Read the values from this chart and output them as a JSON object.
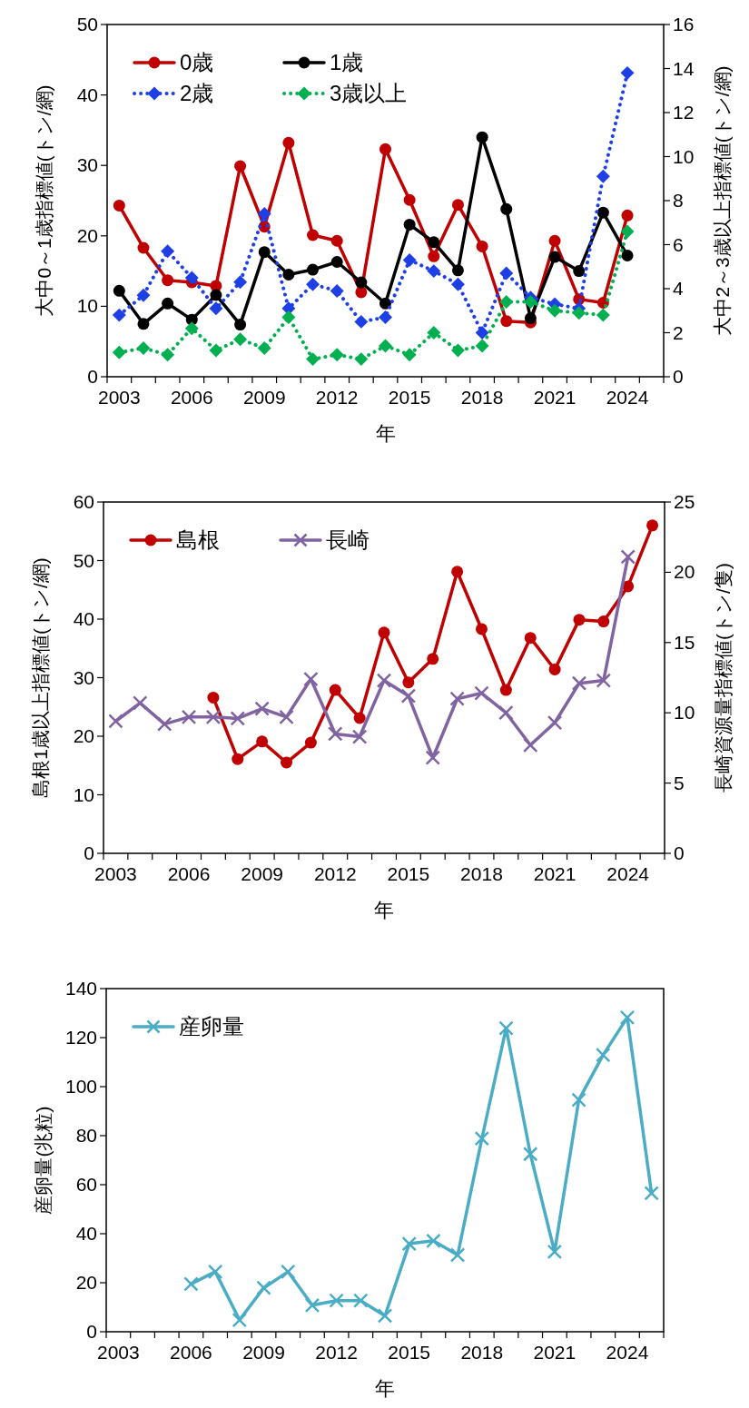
{
  "chart_data": [
    {
      "type": "line",
      "xlabel": "年",
      "ylabel": "大中0～1歳指標値(トン/網)",
      "y2label": "大中2～3歳以上指標値(トン/網)",
      "categories": [
        "2003",
        null,
        null,
        "2006",
        null,
        null,
        "2009",
        null,
        null,
        "2012",
        null,
        null,
        "2015",
        null,
        null,
        "2018",
        null,
        null,
        "2021",
        null,
        null,
        "2024",
        null
      ],
      "ylim": [
        0,
        50
      ],
      "yticks": [
        0,
        10,
        20,
        30,
        40,
        50
      ],
      "y2lim": [
        0,
        16
      ],
      "y2ticks": [
        0,
        2,
        4,
        6,
        8,
        10,
        12,
        14,
        16
      ],
      "legend": "top left",
      "series": [
        {
          "name": "0歳",
          "color": "#c00000",
          "marker": "circle",
          "line_style": "solid",
          "values": [
            24.3,
            18.3,
            13.7,
            13.4,
            12.9,
            29.9,
            21.3,
            33.2,
            20.1,
            19.3,
            12.0,
            32.3,
            25.1,
            17.1,
            24.4,
            18.5,
            7.9,
            7.7,
            19.3,
            11.0,
            10.5,
            22.9,
            null
          ]
        },
        {
          "name": "1歳",
          "color": "#000000",
          "marker": "circle",
          "line_style": "solid",
          "values": [
            12.2,
            7.5,
            10.4,
            8.1,
            11.6,
            7.4,
            17.7,
            14.5,
            15.2,
            16.3,
            13.4,
            10.4,
            21.6,
            19.1,
            15.1,
            34.0,
            23.8,
            8.3,
            17.0,
            15.0,
            23.3,
            17.2,
            null
          ]
        },
        {
          "name": "2歳",
          "color": "#1f3fe6",
          "marker": "diamond",
          "line_style": "dotted",
          "axis": "y2",
          "values": [
            2.8,
            3.7,
            5.7,
            4.5,
            3.1,
            4.3,
            7.4,
            3.1,
            4.2,
            3.9,
            2.5,
            2.7,
            5.3,
            4.8,
            4.2,
            2.0,
            4.7,
            3.6,
            3.3,
            3.1,
            9.1,
            13.8,
            null
          ]
        },
        {
          "name": "3歳以上",
          "color": "#00b050",
          "marker": "diamond",
          "line_style": "dotted",
          "axis": "y2",
          "values": [
            1.1,
            1.3,
            1.0,
            2.2,
            1.2,
            1.7,
            1.3,
            2.7,
            0.8,
            1.0,
            0.8,
            1.4,
            1.0,
            2.0,
            1.2,
            1.4,
            3.4,
            3.4,
            3.0,
            2.9,
            2.8,
            6.6,
            null
          ]
        }
      ]
    },
    {
      "type": "line",
      "xlabel": "年",
      "ylabel": "島根1歳以上指標値(トン/網)",
      "y2label": "長崎資源量指標値(トン/隻)",
      "categories": [
        "2003",
        null,
        null,
        "2006",
        null,
        null,
        "2009",
        null,
        null,
        "2012",
        null,
        null,
        "2015",
        null,
        null,
        "2018",
        null,
        null,
        "2021",
        null,
        null,
        "2024",
        null
      ],
      "ylim": [
        0,
        60
      ],
      "yticks": [
        0,
        10,
        20,
        30,
        40,
        50,
        60
      ],
      "y2lim": [
        0,
        25
      ],
      "y2ticks": [
        0,
        5,
        10,
        15,
        20,
        25
      ],
      "legend": "top left",
      "series": [
        {
          "name": "島根",
          "color": "#c00000",
          "marker": "circle",
          "line_style": "solid",
          "values": [
            null,
            null,
            null,
            null,
            26.6,
            16.1,
            19.1,
            15.5,
            18.9,
            27.9,
            23.1,
            37.7,
            29.2,
            33.2,
            48.1,
            38.3,
            27.9,
            36.8,
            31.4,
            39.9,
            39.6,
            45.6,
            56.0
          ]
        },
        {
          "name": "長崎",
          "color": "#8064a2",
          "marker": "cross",
          "line_style": "solid",
          "axis": "y2",
          "values": [
            9.4,
            10.7,
            9.2,
            9.7,
            9.7,
            9.6,
            10.3,
            9.7,
            12.4,
            8.5,
            8.3,
            12.3,
            11.2,
            6.8,
            11.0,
            11.4,
            10.0,
            7.7,
            9.3,
            12.1,
            12.3,
            21.1,
            null
          ]
        }
      ]
    },
    {
      "type": "line",
      "xlabel": "年",
      "ylabel": "産卵量(兆粒)",
      "categories": [
        "2003",
        null,
        null,
        "2006",
        null,
        null,
        "2009",
        null,
        null,
        "2012",
        null,
        null,
        "2015",
        null,
        null,
        "2018",
        null,
        null,
        "2021",
        null,
        null,
        "2024",
        null
      ],
      "ylim": [
        0,
        140
      ],
      "yticks": [
        0,
        20,
        40,
        60,
        80,
        100,
        120,
        140
      ],
      "legend": "top left",
      "series": [
        {
          "name": "産卵量",
          "color": "#4bacc6",
          "marker": "cross",
          "line_style": "solid",
          "values": [
            null,
            null,
            null,
            19.5,
            24.5,
            4.8,
            17.9,
            24.5,
            10.8,
            12.7,
            12.7,
            6.5,
            35.9,
            37.1,
            31.3,
            78.8,
            123.8,
            72.5,
            32.6,
            94.6,
            112.9,
            128.2,
            56.5
          ]
        }
      ]
    }
  ]
}
